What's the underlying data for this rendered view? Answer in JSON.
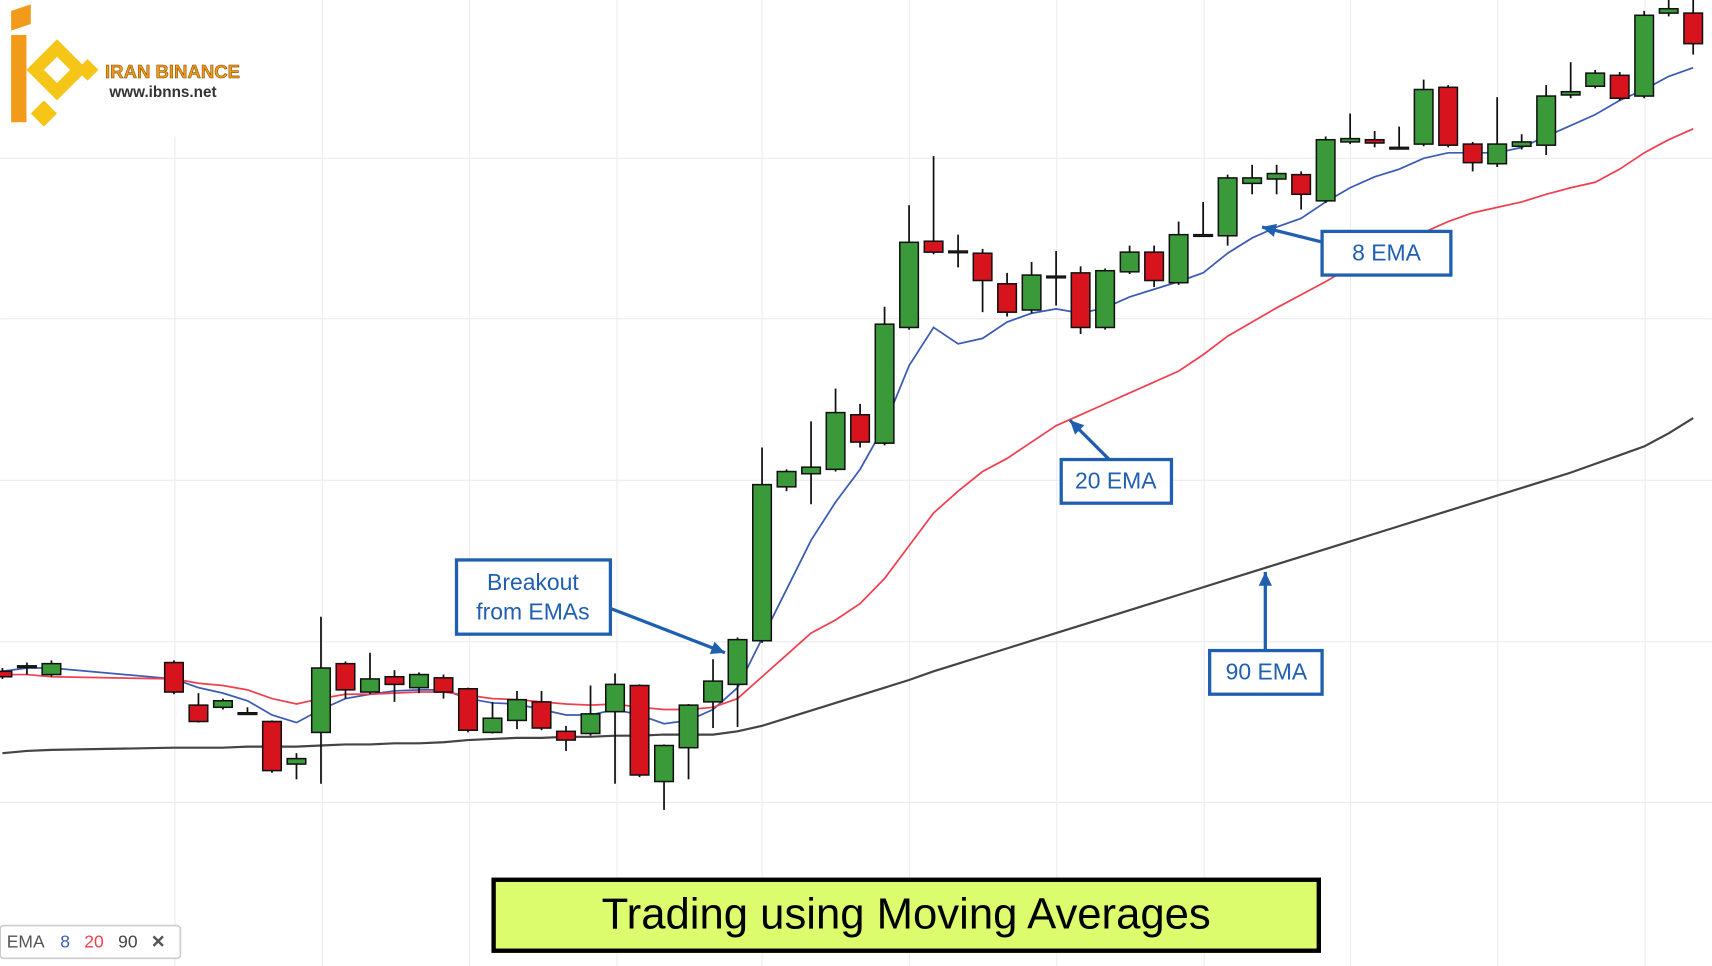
{
  "chart_data": {
    "type": "candlestick",
    "title": "Trading using Moving Averages",
    "logo": {
      "brand": "IRAN BINANCE",
      "url": "www.ibnns.net"
    },
    "legend": {
      "label": "EMA",
      "periods": [
        "8",
        "20",
        "90"
      ],
      "close": "✕"
    },
    "annotations": {
      "breakout": [
        "Breakout",
        "from EMAs"
      ]
    },
    "xlim": [
      0,
      69
    ],
    "ylim": [
      0,
      885
    ],
    "up_color": "#3a9a3a",
    "down_color": "#d7141d",
    "x": [
      0,
      1,
      2,
      7,
      8,
      9,
      10,
      11,
      12,
      13,
      14,
      15,
      16,
      17,
      18,
      19,
      20,
      21,
      22,
      23,
      24,
      25,
      26,
      27,
      28,
      29,
      30,
      31,
      32,
      33,
      34,
      35,
      36,
      37,
      38,
      39,
      40,
      41,
      42,
      43,
      44,
      45,
      46,
      47,
      48,
      49,
      50,
      51,
      52,
      53,
      54,
      55,
      56,
      57,
      58,
      59,
      60,
      61,
      62,
      63,
      64,
      65,
      66,
      67,
      68,
      69
    ],
    "candles": {
      "open": [
        270,
        275,
        267,
        278,
        239,
        237,
        232,
        224,
        185,
        214,
        277,
        251,
        265,
        255,
        264,
        254,
        214,
        225,
        242,
        215,
        213,
        233,
        257,
        169,
        200,
        242,
        258,
        298,
        439,
        451,
        455,
        505,
        479,
        585,
        664,
        655,
        653,
        625,
        601,
        632,
        635,
        585,
        636,
        654,
        626,
        670,
        669,
        717,
        721,
        725,
        701,
        755,
        757,
        750,
        753,
        805,
        753,
        735,
        751,
        752,
        798,
        806,
        816,
        797,
        873,
        873
      ],
      "high": [
        273,
        278,
        280,
        280,
        250,
        245,
        237,
        225,
        195,
        320,
        279,
        287,
        271,
        269,
        267,
        255,
        242,
        252,
        252,
        220,
        257,
        268,
        258,
        203,
        240,
        281,
        301,
        475,
        455,
        499,
        529,
        515,
        604,
        697,
        742,
        670,
        657,
        635,
        645,
        655,
        641,
        639,
        660,
        660,
        682,
        700,
        725,
        734,
        734,
        728,
        760,
        781,
        765,
        769,
        812,
        807,
        755,
        796,
        762,
        807,
        828,
        821,
        819,
        875,
        885,
        885
      ],
      "low": [
        263,
        267,
        265,
        249,
        223,
        235,
        230,
        177,
        171,
        167,
        245,
        249,
        242,
        250,
        245,
        214,
        213,
        217,
        216,
        197,
        211,
        167,
        173,
        143,
        171,
        218,
        219,
        296,
        435,
        423,
        453,
        475,
        477,
        583,
        652,
        640,
        599,
        595,
        598,
        605,
        579,
        583,
        634,
        622,
        624,
        668,
        660,
        707,
        707,
        693,
        699,
        753,
        750,
        748,
        751,
        750,
        728,
        732,
        748,
        743,
        795,
        804,
        793,
        795,
        870,
        835
      ],
      "close": [
        265,
        275,
        277,
        251,
        224,
        243,
        232,
        179,
        190,
        273,
        253,
        263,
        258,
        267,
        251,
        216,
        227,
        244,
        218,
        207,
        231,
        258,
        175,
        202,
        239,
        261,
        299,
        441,
        453,
        457,
        507,
        480,
        588,
        663,
        654,
        655,
        628,
        599,
        633,
        632,
        585,
        637,
        654,
        628,
        670,
        670,
        722,
        722,
        726,
        707,
        757,
        758,
        754,
        750,
        803,
        752,
        736,
        753,
        755,
        797,
        801,
        818,
        795,
        871,
        877,
        845
      ]
    },
    "series": [
      {
        "name": "8 EMA",
        "color": "#3b5bb5",
        "values": [
          270,
          273,
          273,
          263,
          255,
          250,
          243,
          230,
          223,
          235,
          245,
          249,
          252,
          253,
          253,
          245,
          241,
          240,
          235,
          230,
          230,
          235,
          230,
          222,
          225,
          235,
          255,
          300,
          345,
          390,
          425,
          455,
          495,
          550,
          585,
          570,
          575,
          590,
          598,
          602,
          598,
          603,
          613,
          620,
          627,
          635,
          653,
          667,
          677,
          685,
          700,
          713,
          723,
          730,
          740,
          745,
          745,
          745,
          750,
          760,
          770,
          780,
          793,
          803,
          815,
          823
        ]
      },
      {
        "name": "20 EMA",
        "color": "#f04050",
        "values": [
          267,
          267,
          265,
          263,
          259,
          257,
          253,
          245,
          240,
          245,
          249,
          249,
          250,
          251,
          251,
          248,
          245,
          244,
          242,
          240,
          239,
          240,
          237,
          235,
          235,
          237,
          245,
          265,
          285,
          305,
          317,
          332,
          355,
          385,
          415,
          435,
          453,
          465,
          480,
          495,
          505,
          515,
          525,
          535,
          545,
          560,
          577,
          590,
          603,
          615,
          627,
          640,
          650,
          660,
          672,
          682,
          690,
          695,
          700,
          707,
          713,
          718,
          730,
          745,
          757,
          767
        ]
      },
      {
        "name": "90 EMA",
        "color": "#444444",
        "values": [
          195,
          197,
          198,
          200,
          200,
          200,
          201,
          201,
          201,
          202,
          203,
          203,
          204,
          204,
          205,
          207,
          208,
          209,
          209,
          210,
          210,
          211,
          211,
          212,
          212,
          212,
          215,
          220,
          227,
          234,
          241,
          248,
          255,
          262,
          270,
          277,
          284,
          291,
          298,
          305,
          312,
          319,
          326,
          333,
          340,
          347,
          354,
          361,
          368,
          375,
          382,
          389,
          396,
          403,
          410,
          417,
          424,
          431,
          438,
          445,
          452,
          460,
          468,
          476,
          488,
          502
        ]
      }
    ]
  }
}
